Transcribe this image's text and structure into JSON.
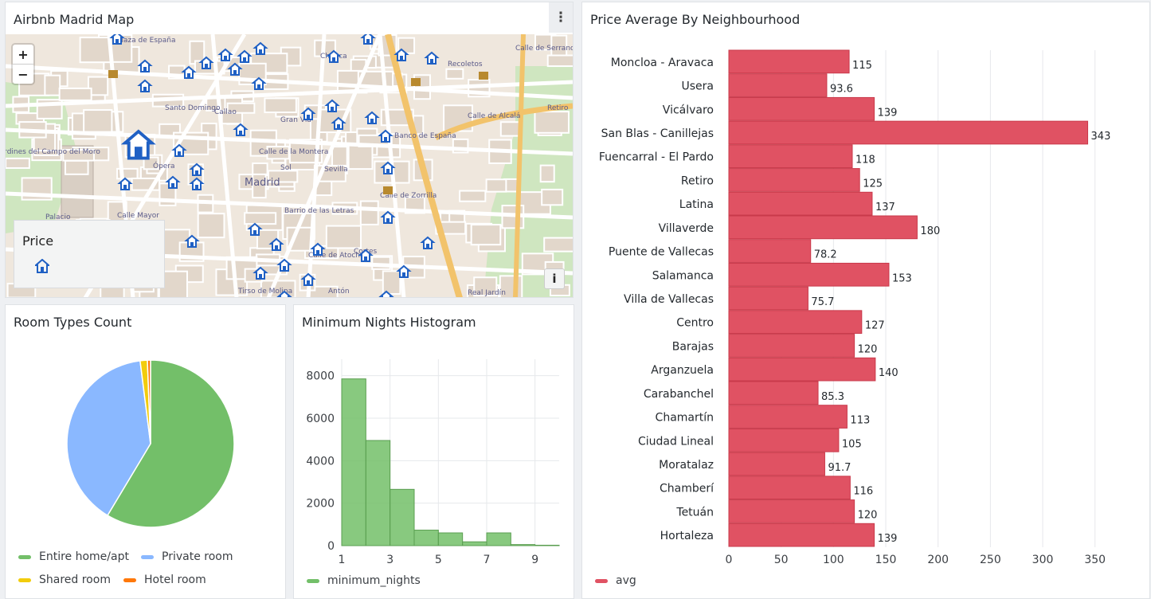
{
  "map_panel": {
    "title": "Airbnb Madrid Map",
    "menu_icon": "more-vertical-icon",
    "zoom_in": "+",
    "zoom_out": "−",
    "legend_title": "Price",
    "legend_icon": "house-marker-icon",
    "info_label": "i",
    "labels": [
      "Plaza de España",
      "Santo Domingo",
      "Callao",
      "Chueca",
      "Recoletos",
      "Gran Vía",
      "Madrid",
      "Sol",
      "Sevilla",
      "Ópera",
      "Banco de España",
      "Palacio",
      "Barrio de las Letras",
      "Cortes",
      "Calle de Alcalá",
      "Retiro",
      "Tirso de Molina",
      "Antón",
      "Jardines del Campo del Moro",
      "Calle Mayor",
      "Calle de Serrano",
      "Calle de Zorrilla",
      "Calle de la Montera",
      "Calle de Atocha",
      "Real Jardín"
    ],
    "colors": {
      "marker": "#1f60c4",
      "road_main": "#f2c36b",
      "park": "#cfe6c0"
    }
  },
  "room_panel": {
    "title": "Room Types Count",
    "chart_data": {
      "type": "pie",
      "title": "Room Types Count",
      "categories": [
        "Entire home/apt",
        "Private room",
        "Shared room",
        "Hotel room"
      ],
      "values": [
        58.6,
        39.4,
        1.4,
        0.6
      ],
      "colors": [
        "#73bf69",
        "#8ab8ff",
        "#f2cc0c",
        "#ff780a"
      ]
    }
  },
  "hist_panel": {
    "title": "Minimum Nights Histogram",
    "chart_data": {
      "type": "bar",
      "title": "Minimum Nights Histogram",
      "bins": [
        [
          1,
          2
        ],
        [
          2,
          3
        ],
        [
          3,
          4
        ],
        [
          4,
          5
        ],
        [
          5,
          6
        ],
        [
          6,
          7
        ],
        [
          7,
          8
        ],
        [
          8,
          9
        ],
        [
          9,
          10
        ]
      ],
      "values": [
        7850,
        4950,
        2650,
        730,
        600,
        180,
        600,
        50,
        20
      ],
      "xlim": [
        1,
        10
      ],
      "ylim": [
        0,
        8400
      ],
      "xticks": [
        "1",
        "3",
        "5",
        "7",
        "9"
      ],
      "yticks": [
        "0",
        "2000",
        "4000",
        "6000",
        "8000"
      ],
      "series_name": "minimum_nights",
      "color": "#73bf69"
    }
  },
  "price_panel": {
    "title": "Price Average By Neighbourhood",
    "chart_data": {
      "type": "bar",
      "orientation": "horizontal",
      "title": "Price Average By Neighbourhood",
      "categories": [
        "Moncloa - Aravaca",
        "Usera",
        "Vicálvaro",
        "San Blas - Canillejas",
        "Fuencarral - El Pardo",
        "Retiro",
        "Latina",
        "Villaverde",
        "Puente de Vallecas",
        "Salamanca",
        "Villa de Vallecas",
        "Centro",
        "Barajas",
        "Arganzuela",
        "Carabanchel",
        "Chamartín",
        "Ciudad Lineal",
        "Moratalaz",
        "Chamberí",
        "Tetuán",
        "Hortaleza"
      ],
      "values": [
        115,
        93.6,
        139,
        343,
        118,
        125,
        137,
        180,
        78.2,
        153,
        75.7,
        127,
        120,
        140,
        85.3,
        113,
        105,
        91.7,
        116,
        120,
        139
      ],
      "value_labels": [
        "115",
        "93.6",
        "139",
        "343",
        "118",
        "125",
        "137",
        "180",
        "78.2",
        "153",
        "75.7",
        "127",
        "120",
        "140",
        "85.3",
        "113",
        "105",
        "91.7",
        "116",
        "120",
        "139"
      ],
      "xlim": [
        0,
        370
      ],
      "xticks": [
        "0",
        "50",
        "100",
        "150",
        "200",
        "250",
        "300",
        "350"
      ],
      "series_name": "avg",
      "color": "#e05263"
    }
  }
}
